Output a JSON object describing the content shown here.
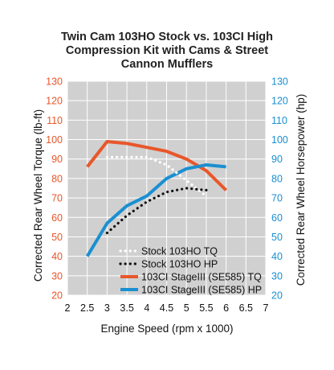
{
  "chart_data": {
    "type": "line",
    "title_lines": [
      "Twin Cam 103HO Stock vs. 103CI High",
      "Compression Kit with Cams & Street",
      "Cannon Mufflers"
    ],
    "xlabel": "Engine Speed (rpm x 1000)",
    "ylabel_left": "Corrected Rear Wheel Torque (lb-ft)",
    "ylabel_right": "Corrected Rear Wheel Horsepower (hp)",
    "x_ticks": [
      "2",
      "2.5",
      "3",
      "3.5",
      "4",
      "4.5",
      "5",
      "5.5",
      "6",
      "6.5",
      "7"
    ],
    "y_ticks": [
      "20",
      "30",
      "40",
      "50",
      "60",
      "70",
      "80",
      "90",
      "100",
      "110",
      "120",
      "130"
    ],
    "xlim": [
      2,
      7
    ],
    "ylim": [
      20,
      130
    ],
    "grid": true,
    "colors": {
      "left_axis": "#e8572a",
      "right_axis": "#1a8fd1",
      "plot_bg": "#d0d0d0",
      "grid": "#ffffff",
      "torque_series": "#e8572a",
      "hp_series": "#1a8fd1",
      "stock_tq": "#ffffff",
      "stock_hp": "#111111"
    },
    "series": [
      {
        "name": "Stock 103HO TQ",
        "style": "dotted-white",
        "x": [
          3,
          3.5,
          4,
          4.5,
          5,
          5.5
        ],
        "y": [
          91,
          91,
          91,
          87,
          79,
          71
        ]
      },
      {
        "name": "Stock 103HO HP",
        "style": "dotted-black",
        "x": [
          3,
          3.5,
          4,
          4.5,
          5,
          5.5
        ],
        "y": [
          52,
          61,
          68,
          73,
          75,
          74
        ]
      },
      {
        "name": "103CI StageIII (SE585) TQ",
        "style": "solid-orange",
        "x": [
          2.5,
          3,
          3.5,
          4,
          4.5,
          5,
          5.5,
          6
        ],
        "y": [
          86,
          99,
          98,
          96,
          94,
          90,
          84,
          74
        ]
      },
      {
        "name": "103CI StageIII (SE585) HP",
        "style": "solid-blue",
        "x": [
          2.5,
          3,
          3.5,
          4,
          4.5,
          5,
          5.5,
          6
        ],
        "y": [
          40,
          57,
          66,
          71,
          80,
          85,
          87,
          86
        ]
      }
    ],
    "legend_position": "bottom-center"
  }
}
